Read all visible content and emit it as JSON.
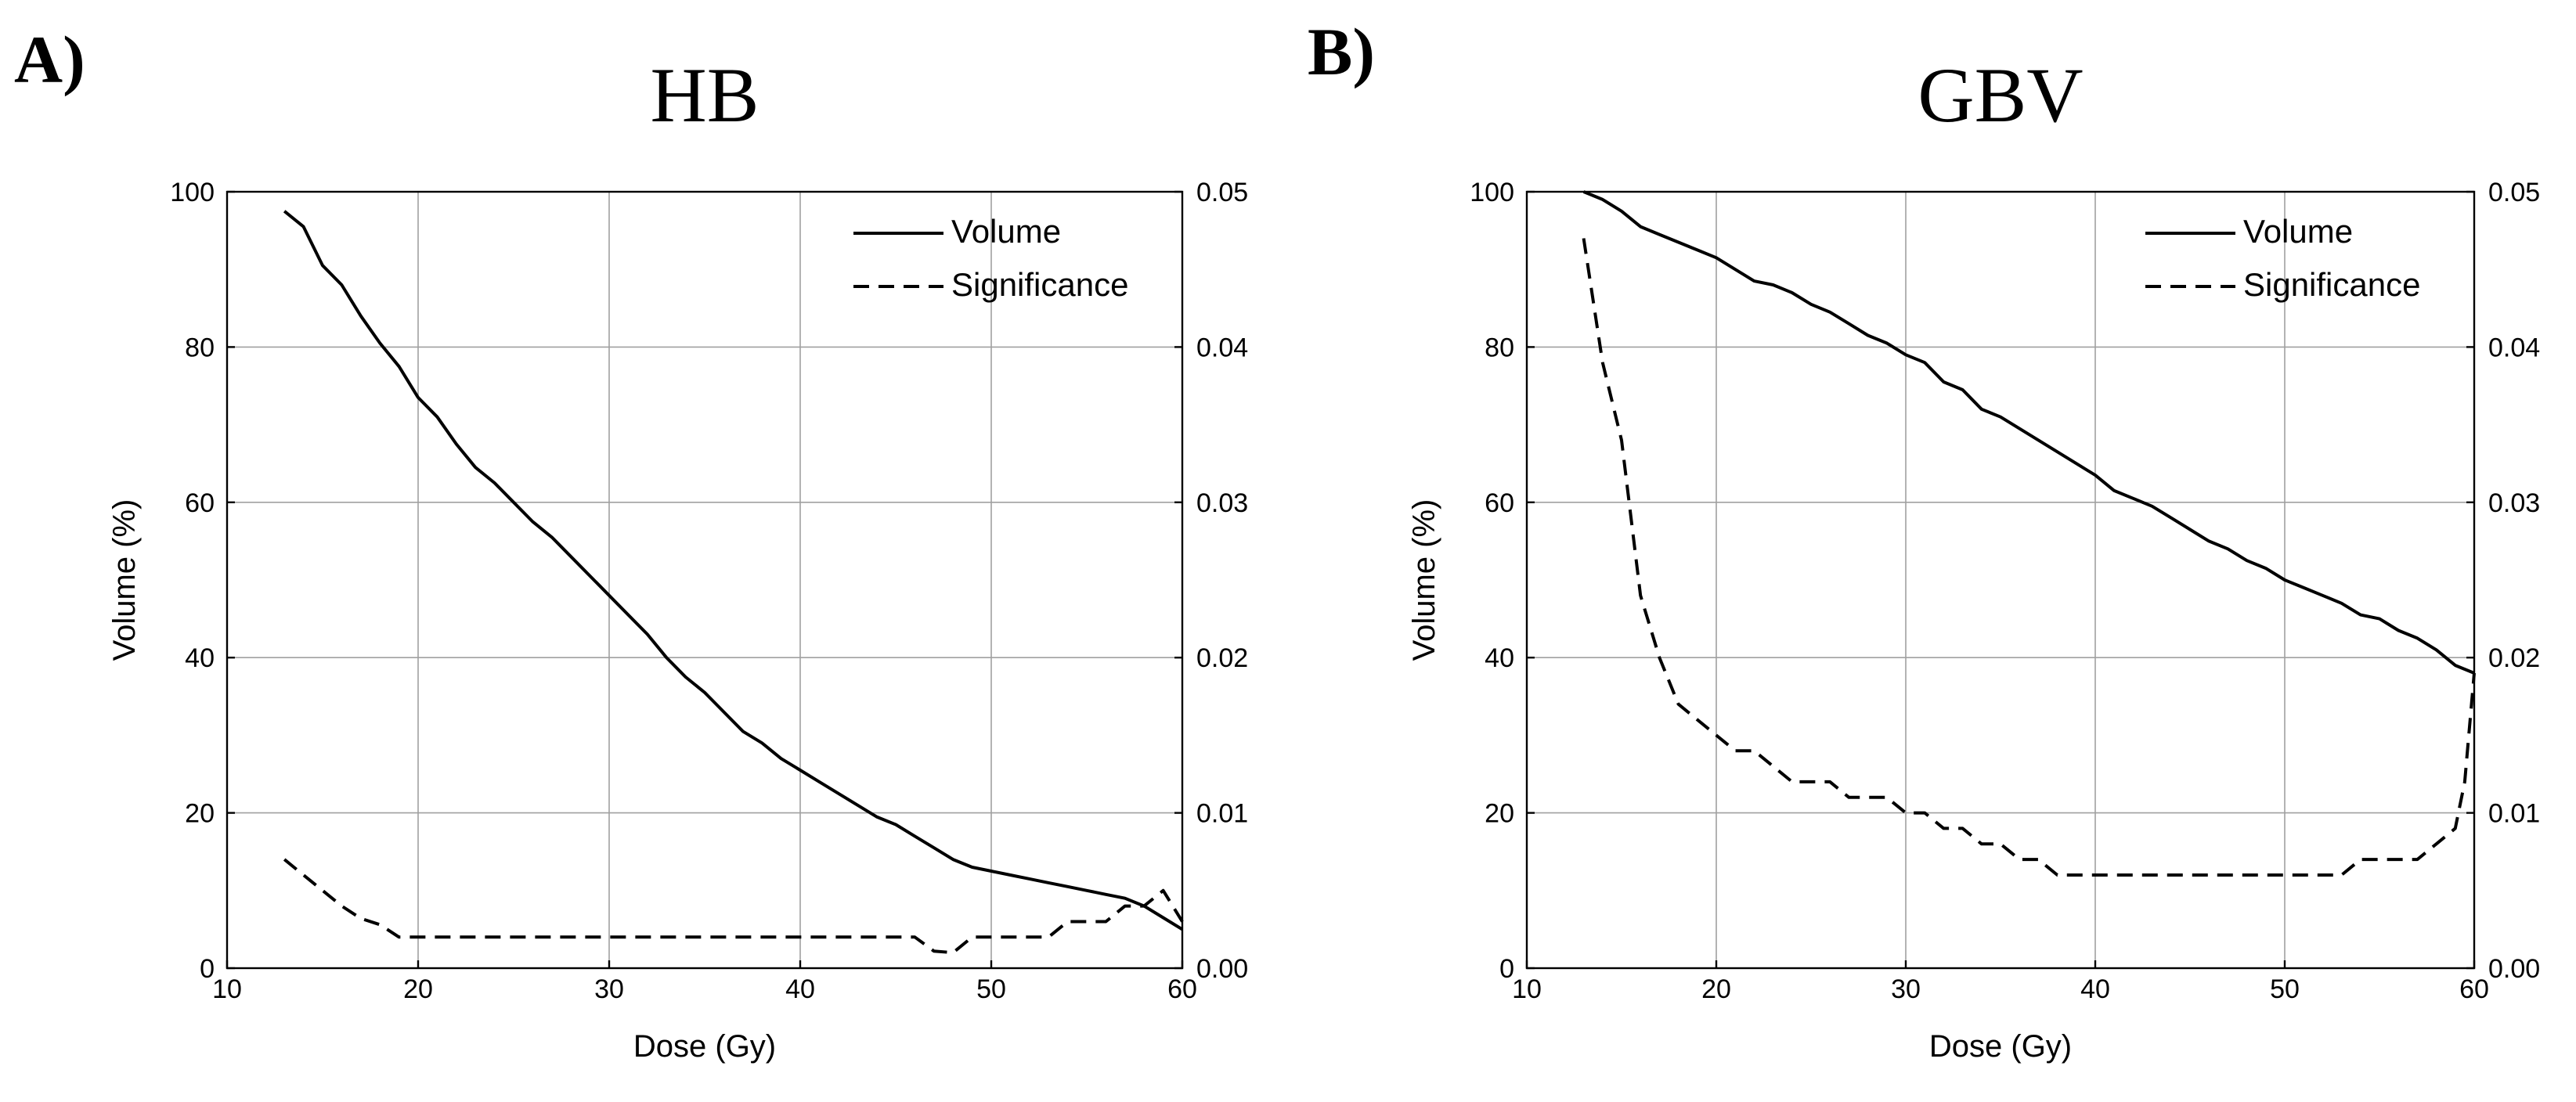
{
  "panels": [
    {
      "label": "A)",
      "title": "HB"
    },
    {
      "label": "B)",
      "title": "GBV"
    }
  ],
  "chart_data": [
    {
      "type": "line",
      "panel": "A)",
      "title": "HB",
      "xlabel": "Dose (Gy)",
      "ylabel": "Volume (%)",
      "y2label": "",
      "xlim": [
        10,
        60
      ],
      "ylim": [
        0,
        100
      ],
      "y2lim": [
        0.0,
        0.05
      ],
      "xticks": [
        "10",
        "20",
        "30",
        "40",
        "50",
        "60"
      ],
      "yticks": [
        "0",
        "20",
        "40",
        "60",
        "80",
        "100"
      ],
      "y2ticks": [
        "0.00",
        "0.01",
        "0.02",
        "0.03",
        "0.04",
        "0.05"
      ],
      "xtick_values": [
        10,
        20,
        30,
        40,
        50,
        60
      ],
      "ytick_values": [
        0,
        20,
        40,
        60,
        80,
        100
      ],
      "grid": true,
      "legend_position": "top-right",
      "series": [
        {
          "name": "Volume",
          "style": "solid",
          "axis": "left",
          "x": [
            13,
            14,
            15,
            16,
            17,
            18,
            19,
            20,
            21,
            22,
            23,
            24,
            25,
            26,
            27,
            28,
            29,
            30,
            31,
            32,
            33,
            34,
            35,
            36,
            37,
            38,
            39,
            40,
            41,
            42,
            43,
            44,
            45,
            46,
            47,
            48,
            49,
            50,
            51,
            52,
            53,
            54,
            55,
            56,
            57,
            58,
            59,
            60
          ],
          "values": [
            97.5,
            95.5,
            90.5,
            88,
            84,
            80.5,
            77.5,
            73.5,
            71,
            67.5,
            64.5,
            62.5,
            60,
            57.5,
            55.5,
            53,
            50.5,
            48,
            45.5,
            43,
            40,
            37.5,
            35.5,
            33,
            30.5,
            29,
            27,
            25.5,
            24,
            22.5,
            21,
            19.5,
            18.5,
            17,
            15.5,
            14,
            13,
            12.5,
            12,
            11.5,
            11,
            10.5,
            10,
            9.5,
            9,
            8,
            6.5,
            5
          ]
        },
        {
          "name": "Significance",
          "style": "dashed",
          "axis": "right",
          "x": [
            13,
            14,
            15,
            16,
            17,
            18,
            19,
            20,
            22,
            24,
            26,
            28,
            30,
            32,
            34,
            36,
            38,
            40,
            42,
            44,
            46,
            47,
            48,
            49,
            50,
            52,
            53,
            54,
            56,
            57,
            58,
            59,
            60
          ],
          "values": [
            0.007,
            0.006,
            0.005,
            0.004,
            0.0032,
            0.0028,
            0.002,
            0.002,
            0.002,
            0.002,
            0.002,
            0.002,
            0.002,
            0.002,
            0.002,
            0.002,
            0.002,
            0.002,
            0.002,
            0.002,
            0.002,
            0.0011,
            0.001,
            0.002,
            0.002,
            0.002,
            0.002,
            0.003,
            0.003,
            0.004,
            0.004,
            0.005,
            0.003
          ]
        }
      ]
    },
    {
      "type": "line",
      "panel": "B)",
      "title": "GBV",
      "xlabel": "Dose (Gy)",
      "ylabel": "Volume (%)",
      "y2label": "",
      "xlim": [
        10,
        60
      ],
      "ylim": [
        0,
        100
      ],
      "y2lim": [
        0.0,
        0.05
      ],
      "xticks": [
        "10",
        "20",
        "30",
        "40",
        "50",
        "60"
      ],
      "yticks": [
        "0",
        "20",
        "40",
        "60",
        "80",
        "100"
      ],
      "y2ticks": [
        "0.00",
        "0.01",
        "0.02",
        "0.03",
        "0.04",
        "0.05"
      ],
      "xtick_values": [
        10,
        20,
        30,
        40,
        50,
        60
      ],
      "ytick_values": [
        0,
        20,
        40,
        60,
        80,
        100
      ],
      "grid": true,
      "legend_position": "top-right",
      "series": [
        {
          "name": "Volume",
          "style": "solid",
          "axis": "left",
          "x": [
            13,
            14,
            15,
            16,
            17,
            18,
            19,
            20,
            21,
            22,
            23,
            24,
            25,
            26,
            27,
            28,
            29,
            30,
            31,
            32,
            33,
            34,
            35,
            36,
            37,
            38,
            39,
            40,
            41,
            42,
            43,
            44,
            45,
            46,
            47,
            48,
            49,
            50,
            51,
            52,
            53,
            54,
            55,
            56,
            57,
            58,
            59,
            60
          ],
          "values": [
            100,
            99,
            97.5,
            95.5,
            94.5,
            93.5,
            92.5,
            91.5,
            90,
            88.5,
            88,
            87,
            85.5,
            84.5,
            83,
            81.5,
            80.5,
            79,
            78,
            75.5,
            74.5,
            72,
            71,
            69.5,
            68,
            66.5,
            65,
            63.5,
            61.5,
            60.5,
            59.5,
            58,
            56.5,
            55,
            54,
            52.5,
            51.5,
            50,
            49,
            48,
            47,
            45.5,
            45,
            43.5,
            42.5,
            41,
            39,
            38
          ]
        },
        {
          "name": "Significance",
          "style": "dashed",
          "axis": "right",
          "x": [
            13,
            14,
            15,
            16,
            17,
            18,
            19,
            20,
            21,
            22,
            23,
            24,
            25,
            26,
            27,
            28,
            29,
            30,
            31,
            32,
            33,
            34,
            35,
            36,
            37,
            38,
            39,
            40,
            42,
            44,
            46,
            48,
            50,
            52,
            53,
            54,
            55,
            56,
            57,
            58,
            59,
            59.5,
            60
          ],
          "values": [
            0.047,
            0.039,
            0.034,
            0.024,
            0.02,
            0.017,
            0.016,
            0.015,
            0.014,
            0.014,
            0.013,
            0.012,
            0.012,
            0.012,
            0.011,
            0.011,
            0.011,
            0.01,
            0.01,
            0.009,
            0.009,
            0.008,
            0.008,
            0.007,
            0.007,
            0.006,
            0.006,
            0.006,
            0.006,
            0.006,
            0.006,
            0.006,
            0.006,
            0.006,
            0.006,
            0.007,
            0.007,
            0.007,
            0.007,
            0.008,
            0.009,
            0.012,
            0.019
          ]
        }
      ]
    }
  ]
}
